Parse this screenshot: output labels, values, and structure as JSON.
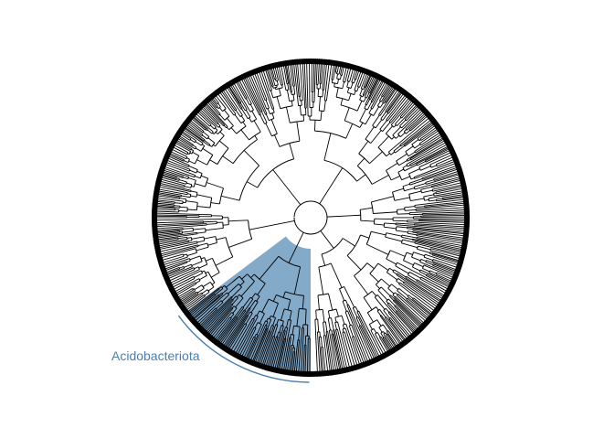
{
  "figure": {
    "type": "circular phylogenetic tree",
    "highlight": {
      "clade_label": "Acidobacteriota",
      "fill_color": "#5b8db8",
      "label_color": "#4a7fb0",
      "bracket_color": "#4a7fb0"
    },
    "branch_color": "#000000",
    "background": "#ffffff"
  }
}
